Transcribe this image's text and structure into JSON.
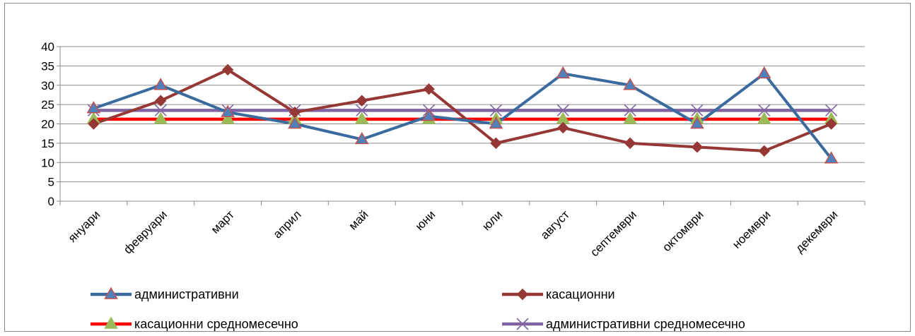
{
  "chart_data": {
    "type": "line",
    "title": "",
    "xlabel": "",
    "ylabel": "",
    "ylim": [
      0,
      40
    ],
    "yticks": [
      0,
      5,
      10,
      15,
      20,
      25,
      30,
      35,
      40
    ],
    "grid": true,
    "legend_position": "bottom",
    "categories": [
      "януари",
      "февруари",
      "март",
      "април",
      "май",
      "юни",
      "юли",
      "август",
      "септември",
      "октомври",
      "ноември",
      "декември"
    ],
    "series": [
      {
        "name": "административни",
        "color": "#3A6A9E",
        "marker": "triangle",
        "marker_fill": "#4F81BD",
        "marker_stroke": "#C0504D",
        "values": [
          24,
          30,
          23,
          20,
          16,
          22,
          20,
          33,
          30,
          20,
          33,
          11
        ]
      },
      {
        "name": "касационни",
        "color": "#953735",
        "marker": "diamond",
        "marker_fill": "#953735",
        "marker_stroke": "#953735",
        "values": [
          20,
          26,
          34,
          23,
          26,
          29,
          15,
          19,
          15,
          14,
          13,
          20
        ]
      },
      {
        "name": "касационни средномесечно",
        "color": "#FF0000",
        "marker": "triangle",
        "marker_fill": "#9BBB59",
        "marker_stroke": "#9BBB59",
        "values": [
          21.2,
          21.2,
          21.2,
          21.2,
          21.2,
          21.2,
          21.2,
          21.2,
          21.2,
          21.2,
          21.2,
          21.2
        ]
      },
      {
        "name": "административни средномесечно",
        "color": "#8064A2",
        "marker": "x",
        "marker_fill": "#8064A2",
        "marker_stroke": "#8064A2",
        "values": [
          23.5,
          23.5,
          23.5,
          23.5,
          23.5,
          23.5,
          23.5,
          23.5,
          23.5,
          23.5,
          23.5,
          23.5
        ]
      }
    ]
  }
}
